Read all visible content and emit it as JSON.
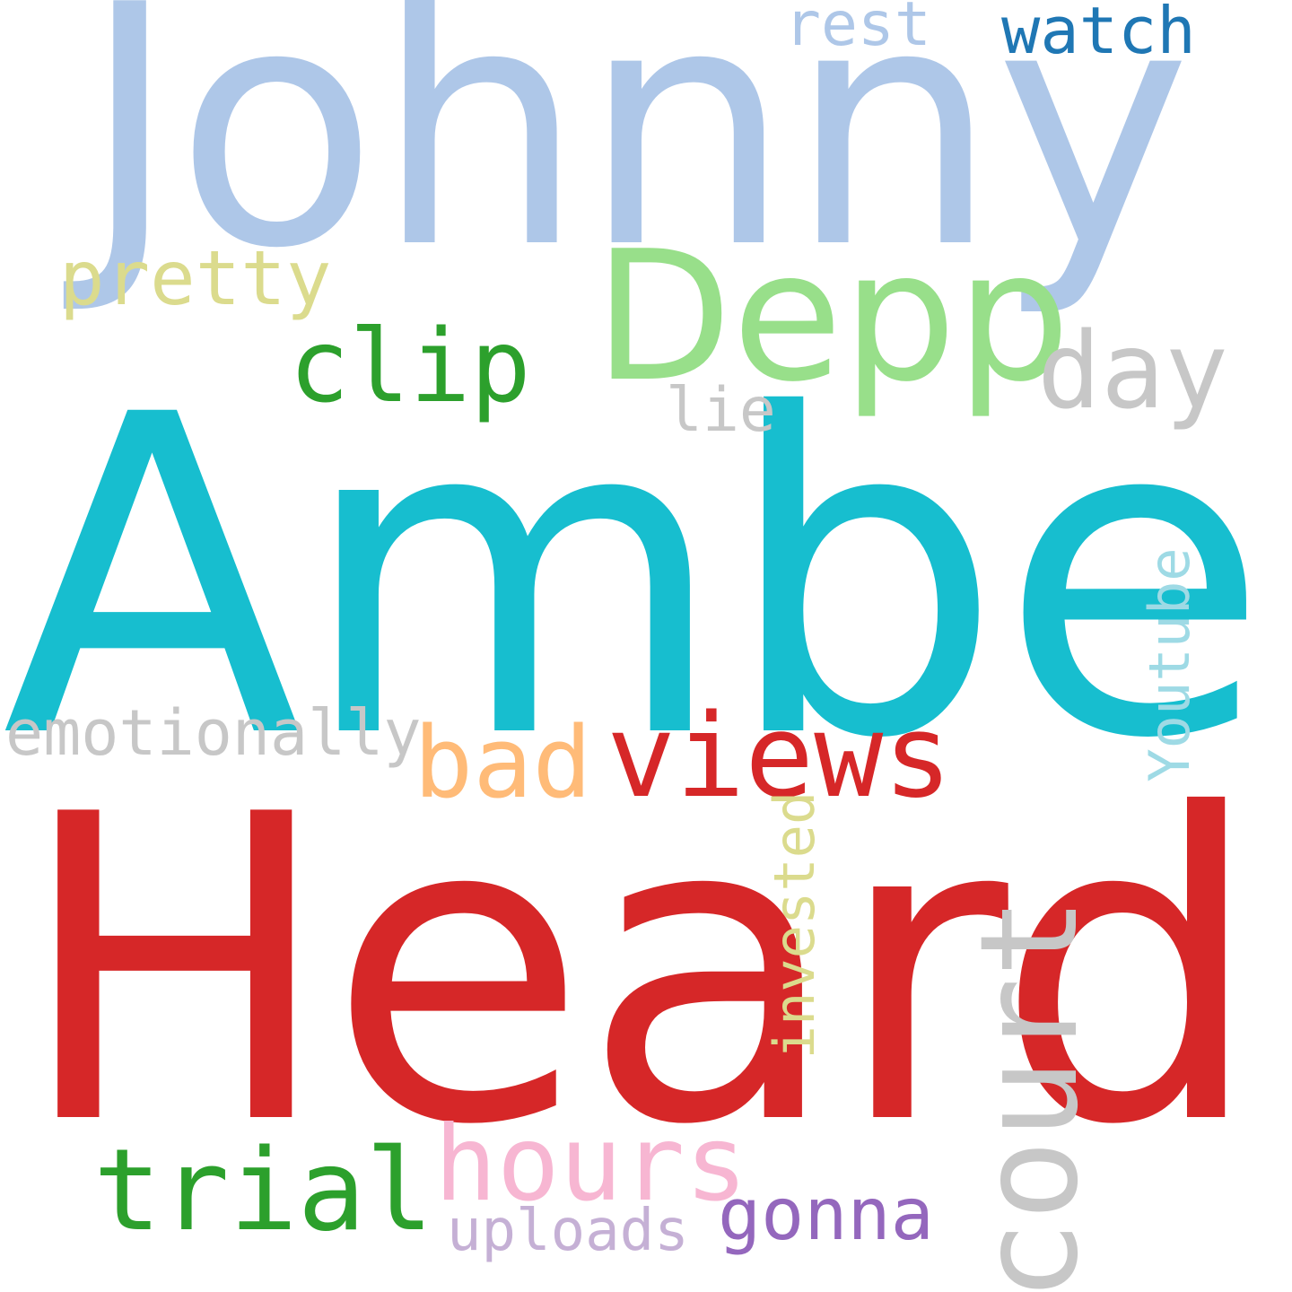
{
  "word_cloud": {
    "words": [
      {
        "id": "heard",
        "text": "Heard",
        "color": "#d62728"
      },
      {
        "id": "amber",
        "text": "Amber",
        "color": "#17becf"
      },
      {
        "id": "johnny",
        "text": "Johnny",
        "color": "#aec7e8"
      },
      {
        "id": "depp",
        "text": "Depp",
        "color": "#98df8a"
      },
      {
        "id": "views",
        "text": "views",
        "color": "#d62728"
      },
      {
        "id": "trial",
        "text": "trial",
        "color": "#2ca02c"
      },
      {
        "id": "hours",
        "text": "hours",
        "color": "#f7b6d2"
      },
      {
        "id": "court",
        "text": "court",
        "color": "#c7c7c7"
      },
      {
        "id": "clip",
        "text": "clip",
        "color": "#2ca02c"
      },
      {
        "id": "bad",
        "text": "bad",
        "color": "#ffbb78"
      },
      {
        "id": "day",
        "text": "day",
        "color": "#c7c7c7"
      },
      {
        "id": "pretty",
        "text": "pretty",
        "color": "#dbdb8d"
      },
      {
        "id": "emotionally",
        "text": "emotionally",
        "color": "#c7c7c7"
      },
      {
        "id": "gonna",
        "text": "gonna",
        "color": "#9467bd"
      },
      {
        "id": "uploads",
        "text": "uploads",
        "color": "#c5b0d5"
      },
      {
        "id": "watch",
        "text": "watch",
        "color": "#1f77b4"
      },
      {
        "id": "rest",
        "text": "rest",
        "color": "#aec7e8"
      },
      {
        "id": "lie",
        "text": "lie",
        "color": "#c7c7c7"
      },
      {
        "id": "invested",
        "text": "invested",
        "color": "#dbdb8d"
      },
      {
        "id": "youtube",
        "text": "Youtube",
        "color": "#9edae5"
      }
    ]
  }
}
